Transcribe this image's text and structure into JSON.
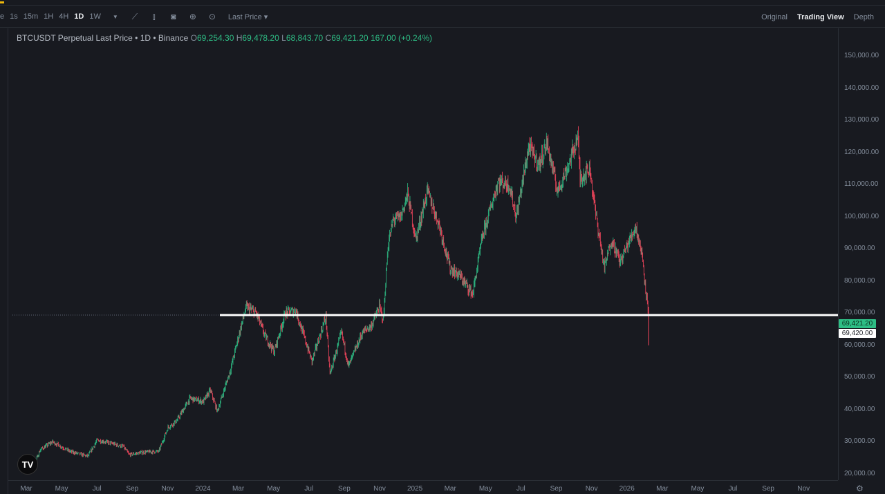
{
  "toolbar": {
    "timeframes": [
      {
        "label": "e",
        "active": false
      },
      {
        "label": "1s",
        "active": false
      },
      {
        "label": "15m",
        "active": false
      },
      {
        "label": "1H",
        "active": false
      },
      {
        "label": "4H",
        "active": false
      },
      {
        "label": "1D",
        "active": true
      },
      {
        "label": "1W",
        "active": false
      }
    ],
    "icons": [
      "chevron-down-icon",
      "indicator-icon",
      "candle-type-icon",
      "camera-icon",
      "plus-circle-icon",
      "settings-circle-icon"
    ],
    "price_type": "Last Price ▾",
    "views": [
      "Original",
      "Trading View",
      "Depth"
    ],
    "active_view": "Trading View"
  },
  "legend": {
    "symbol": "BTCUSDT Perpetual Last Price • 1D • Binance",
    "open_label": "O",
    "open": "69,254.30",
    "high_label": "H",
    "high": "69,478.20",
    "low_label": "L",
    "low": "68,843.70",
    "close_label": "C",
    "close": "69,421.20",
    "change": "167.00 (+0.24%)"
  },
  "price_axis": [
    "150,000.00",
    "140,000.00",
    "130,000.00",
    "120,000.00",
    "110,000.00",
    "100,000.00",
    "90,000.00",
    "80,000.00",
    "70,000.00",
    "60,000.00",
    "50,000.00",
    "40,000.00",
    "30,000.00",
    "20,000.00"
  ],
  "price_tags": {
    "last": "69,421.20",
    "line": "69,420.00"
  },
  "time_axis": [
    "Mar",
    "May",
    "Jul",
    "Sep",
    "Nov",
    "2024",
    "Mar",
    "May",
    "Jul",
    "Sep",
    "Nov",
    "2025",
    "Mar",
    "May",
    "Jul",
    "Sep",
    "Nov",
    "2026",
    "Mar",
    "May",
    "Jul",
    "Sep",
    "Nov"
  ],
  "colors": {
    "up": "#2ebd85",
    "down": "#f6465d",
    "background": "#181a20",
    "hline": "#ffffff"
  },
  "chart_data": {
    "type": "candlestick",
    "symbol": "BTCUSDT",
    "interval": "1D",
    "ylim": [
      17000,
      157000
    ],
    "y_scale": "linear",
    "horizontal_line": 69420,
    "approx_path": [
      [
        "2023-02-15",
        23000
      ],
      [
        "2023-03-10",
        21000
      ],
      [
        "2023-03-25",
        27500
      ],
      [
        "2023-04-15",
        30000
      ],
      [
        "2023-05-15",
        27000
      ],
      [
        "2023-06-15",
        25500
      ],
      [
        "2023-07-01",
        30500
      ],
      [
        "2023-07-20",
        29800
      ],
      [
        "2023-08-15",
        28500
      ],
      [
        "2023-08-25",
        26000
      ],
      [
        "2023-09-20",
        26800
      ],
      [
        "2023-10-15",
        27000
      ],
      [
        "2023-10-31",
        34500
      ],
      [
        "2023-11-15",
        36500
      ],
      [
        "2023-12-08",
        43500
      ],
      [
        "2023-12-31",
        42500
      ],
      [
        "2024-01-12",
        46000
      ],
      [
        "2024-01-24",
        39500
      ],
      [
        "2024-02-15",
        52000
      ],
      [
        "2024-03-05",
        66000
      ],
      [
        "2024-03-14",
        72000
      ],
      [
        "2024-03-31",
        70000
      ],
      [
        "2024-04-15",
        63000
      ],
      [
        "2024-05-01",
        58000
      ],
      [
        "2024-05-20",
        70000
      ],
      [
        "2024-06-07",
        71000
      ],
      [
        "2024-07-05",
        55000
      ],
      [
        "2024-07-29",
        69000
      ],
      [
        "2024-08-05",
        51000
      ],
      [
        "2024-08-25",
        64000
      ],
      [
        "2024-09-06",
        53500
      ],
      [
        "2024-09-30",
        64000
      ],
      [
        "2024-10-15",
        66000
      ],
      [
        "2024-10-29",
        72000
      ],
      [
        "2024-11-05",
        68000
      ],
      [
        "2024-11-13",
        91000
      ],
      [
        "2024-11-22",
        99000
      ],
      [
        "2024-12-05",
        100000
      ],
      [
        "2024-12-17",
        107000
      ],
      [
        "2024-12-31",
        93000
      ],
      [
        "2025-01-20",
        108000
      ],
      [
        "2025-02-10",
        97000
      ],
      [
        "2025-02-28",
        84000
      ],
      [
        "2025-03-15",
        82000
      ],
      [
        "2025-04-08",
        76000
      ],
      [
        "2025-04-25",
        94000
      ],
      [
        "2025-05-22",
        111000
      ],
      [
        "2025-06-10",
        110000
      ],
      [
        "2025-06-22",
        100000
      ],
      [
        "2025-07-14",
        122000
      ],
      [
        "2025-07-31",
        116000
      ],
      [
        "2025-08-14",
        123000
      ],
      [
        "2025-09-01",
        108000
      ],
      [
        "2025-09-20",
        116000
      ],
      [
        "2025-10-06",
        125000
      ],
      [
        "2025-10-10",
        112000
      ],
      [
        "2025-10-27",
        115000
      ],
      [
        "2025-11-05",
        102000
      ],
      [
        "2025-11-21",
        84000
      ],
      [
        "2025-12-03",
        93000
      ],
      [
        "2025-12-18",
        86000
      ],
      [
        "2026-01-14",
        97000
      ],
      [
        "2026-01-25",
        88000
      ],
      [
        "2026-02-05",
        69400
      ]
    ]
  }
}
